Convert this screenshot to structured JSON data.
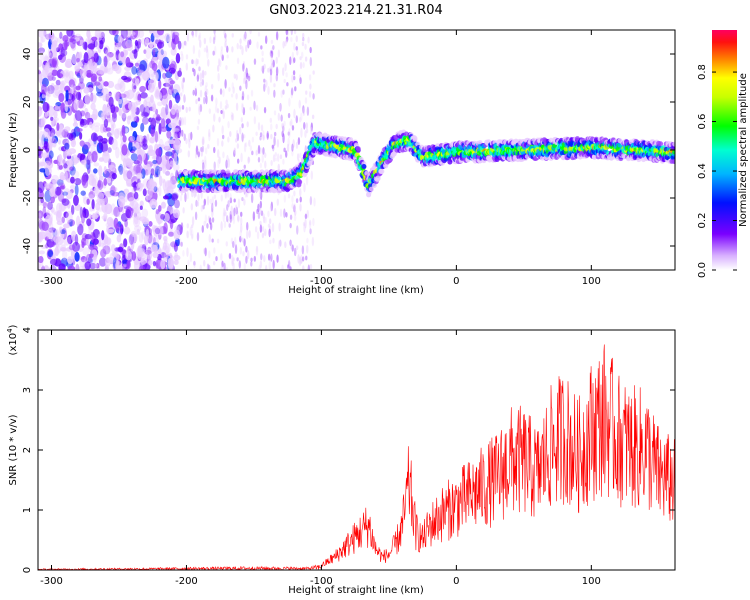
{
  "title": "GN03.2023.214.21.31.R04",
  "chart_data": [
    {
      "type": "heatmap",
      "xlabel": "Height of straight line (km)",
      "ylabel": "Frequency (Hz)",
      "xlim": [
        -310,
        162
      ],
      "ylim": [
        -50,
        50
      ],
      "xticks": [
        -300,
        -200,
        -100,
        0,
        100
      ],
      "yticks": [
        -40,
        -20,
        0,
        20,
        40
      ],
      "colorbar": {
        "label": "Normalized spectral amplitude",
        "range": [
          0.0,
          0.97
        ],
        "ticks": [
          0.0,
          0.2,
          0.4,
          0.6,
          0.8
        ]
      },
      "ridge": {
        "description_points_x": [
          -205,
          -125,
          -115,
          -105,
          -75,
          -65,
          -55,
          -45,
          -35,
          -25,
          0,
          50,
          100,
          162
        ],
        "description_points_y": [
          -13,
          -13,
          -10,
          3,
          0,
          -15,
          -5,
          3,
          4,
          -3,
          -1,
          0,
          1,
          -1
        ]
      },
      "noise_region_x": [
        -310,
        -205
      ]
    },
    {
      "type": "line",
      "xlabel": "Height of straight line (km)",
      "ylabel": "SNR (10 * v/v)",
      "y_multiplier": "(x10",
      "y_multiplier_exp": "4",
      "y_multiplier_close": ")",
      "xlim": [
        -310,
        162
      ],
      "ylim": [
        0,
        4
      ],
      "xticks": [
        -300,
        -200,
        -100,
        0,
        100
      ],
      "yticks": [
        0,
        1,
        2,
        3,
        4
      ],
      "series": [
        {
          "color": "#ff0000",
          "envelope_x": [
            -310,
            -220,
            -150,
            -110,
            -100,
            -90,
            -80,
            -70,
            -65,
            -60,
            -55,
            -50,
            -45,
            -40,
            -35,
            -30,
            -25,
            -20,
            -10,
            0,
            10,
            20,
            30,
            40,
            50,
            60,
            70,
            80,
            90,
            100,
            110,
            120,
            130,
            140,
            150,
            162
          ],
          "envelope_y": [
            0.02,
            0.04,
            0.06,
            0.05,
            0.1,
            0.3,
            0.6,
            0.9,
            1.05,
            0.5,
            0.3,
            0.35,
            0.6,
            1.0,
            2.0,
            0.9,
            0.7,
            1.0,
            1.3,
            1.5,
            1.7,
            1.9,
            2.1,
            2.5,
            2.5,
            2.2,
            2.8,
            3.1,
            2.6,
            3.2,
            3.5,
            3.0,
            2.8,
            2.8,
            2.2,
            2.0
          ]
        }
      ]
    }
  ]
}
